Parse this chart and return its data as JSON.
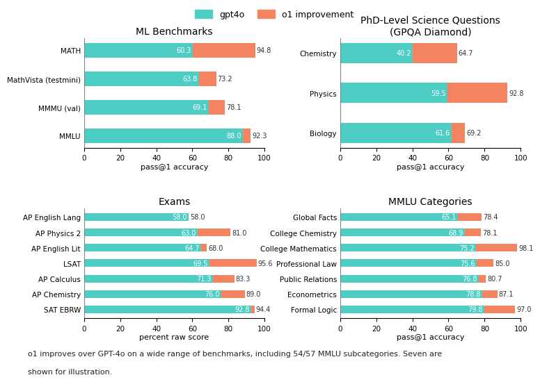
{
  "legend": {
    "gpt4o_color": "#4ecdc4",
    "o1_color": "#f4845f",
    "gpt4o_label": "gpt4o",
    "o1_label": "o1 improvement"
  },
  "panels": [
    {
      "title": "ML Benchmarks",
      "xlabel": "pass@1 accuracy",
      "categories": [
        "MMLU",
        "MMMU (val)",
        "MathVista (testmini)",
        "MATH"
      ],
      "gpt4o": [
        88.0,
        69.1,
        63.8,
        60.3
      ],
      "total": [
        92.3,
        78.1,
        73.2,
        94.8
      ],
      "xlim": [
        0,
        100
      ],
      "xticks": [
        0,
        20,
        40,
        60,
        80,
        100
      ]
    },
    {
      "title": "PhD-Level Science Questions\n(GPQA Diamond)",
      "xlabel": "pass@1 accuracy",
      "categories": [
        "Biology",
        "Physics",
        "Chemistry"
      ],
      "gpt4o": [
        61.6,
        59.5,
        40.2
      ],
      "total": [
        69.2,
        92.8,
        64.7
      ],
      "xlim": [
        0,
        100
      ],
      "xticks": [
        0,
        20,
        40,
        60,
        80,
        100
      ]
    },
    {
      "title": "Exams",
      "xlabel": "percent raw score",
      "categories": [
        "SAT EBRW",
        "AP Chemistry",
        "AP Calculus",
        "LSAT",
        "AP English Lit",
        "AP Physics 2",
        "AP English Lang"
      ],
      "gpt4o": [
        92.8,
        76.0,
        71.3,
        69.5,
        64.7,
        63.0,
        58.0
      ],
      "total": [
        94.4,
        89.0,
        83.3,
        95.6,
        68.0,
        81.0,
        58.0
      ],
      "xlim": [
        0,
        100
      ],
      "xticks": [
        0,
        20,
        40,
        60,
        80,
        100
      ]
    },
    {
      "title": "MMLU Categories",
      "xlabel": "pass@1 accuracy",
      "categories": [
        "Formal Logic",
        "Econometrics",
        "Public Relations",
        "Professional Law",
        "College Mathematics",
        "College Chemistry",
        "Global Facts"
      ],
      "gpt4o": [
        79.8,
        78.8,
        76.8,
        75.6,
        75.2,
        68.9,
        65.1
      ],
      "total": [
        97.0,
        87.1,
        80.7,
        85.0,
        98.1,
        78.1,
        78.4
      ],
      "xlim": [
        0,
        100
      ],
      "xticks": [
        0,
        20,
        40,
        60,
        80,
        100
      ]
    }
  ],
  "footnote1": "o1 improves over GPT-4o on a wide range of benchmarks, including 54/57 MMLU subcategories. Seven are",
  "footnote2": "shown for illustration.",
  "background_color": "#ffffff",
  "bar_height": 0.5,
  "label_fontsize": 7.0,
  "title_fontsize": 10,
  "xlabel_fontsize": 8,
  "tick_fontsize": 7.5
}
